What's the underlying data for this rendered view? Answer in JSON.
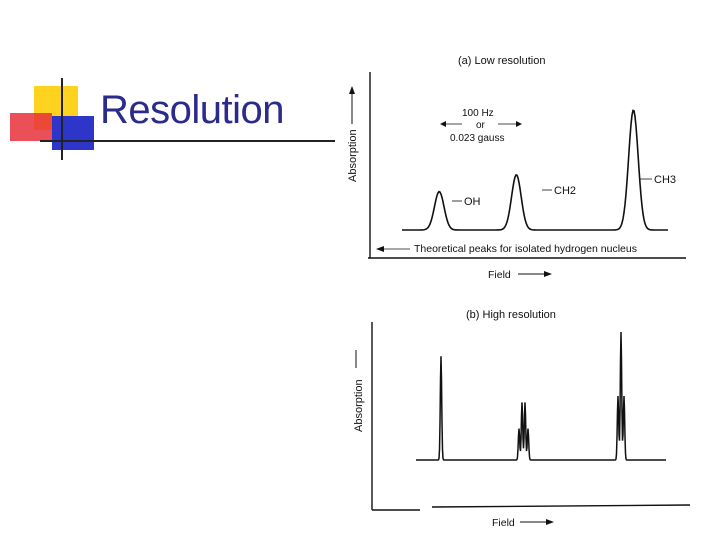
{
  "slide": {
    "title": "Resolution",
    "colors": {
      "title": "#2b2b8c",
      "logo_yellow": "#ffd21f",
      "logo_blue": "#2e35c9",
      "logo_red": "#e8303a"
    }
  },
  "chart_data": [
    {
      "type": "line",
      "title": "(a) Low resolution",
      "xlabel": "Field",
      "ylabel": "Absorption",
      "x_direction": "increasing to the right",
      "scale_annotation": [
        "100 Hz",
        "or",
        "0.023 gauss"
      ],
      "baseline_annotation": "Theoretical peaks for isolated hydrogen nucleus",
      "peak_labels": [
        "OH",
        "CH2",
        "CH3"
      ],
      "peak_relative_heights": [
        0.32,
        0.46,
        1.0
      ],
      "peaks": [
        {
          "label": "OH",
          "position": 0.14,
          "height": 0.32
        },
        {
          "label": "CH2",
          "position": 0.43,
          "height": 0.46
        },
        {
          "label": "CH3",
          "position": 0.87,
          "height": 1.0
        }
      ]
    },
    {
      "type": "line",
      "title": "(b) High resolution",
      "xlabel": "Field",
      "ylabel": "Absorption",
      "peaks": [
        {
          "group": "OH",
          "position": 0.1,
          "lines": [
            1.0
          ],
          "relative_height": 0.81
        },
        {
          "group": "CH2",
          "position": 0.43,
          "lines": [
            0.3,
            0.55,
            0.55,
            0.3
          ],
          "relative_height": 0.45
        },
        {
          "group": "CH3",
          "position": 0.82,
          "lines": [
            0.5,
            1.0,
            0.5
          ],
          "relative_height": 1.0
        }
      ]
    }
  ]
}
